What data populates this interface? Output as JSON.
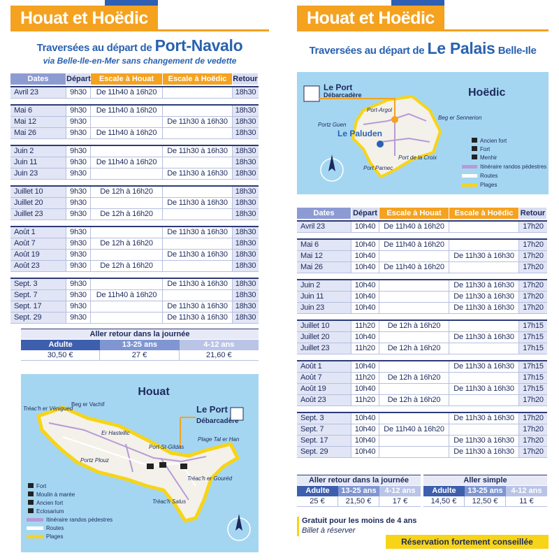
{
  "left": {
    "header": "Houat et Hoëdic",
    "subtitle_prefix": "Traversées au départ de",
    "subtitle_place": "Port-Navalo",
    "subtitle_note": "via Belle-Ile-en-Mer sans changement de vedette",
    "table": {
      "columns": [
        "Dates",
        "Départ",
        "Escale à Houat",
        "Escale à Hoëdic",
        "Retour"
      ],
      "groups": [
        [
          [
            "Avril 23",
            "9h30",
            "De 11h40 à 16h20",
            null,
            "18h30"
          ]
        ],
        [
          [
            "Mai 6",
            "9h30",
            "De 11h40 à 16h20",
            null,
            "18h30"
          ],
          [
            "Mai 12",
            "9h30",
            null,
            "De 11h30 à 16h30",
            "18h30"
          ],
          [
            "Mai 26",
            "9h30",
            "De 11h40 à 16h20",
            null,
            "18h30"
          ]
        ],
        [
          [
            "Juin 2",
            "9h30",
            null,
            "De 11h30 à 16h30",
            "18h30"
          ],
          [
            "Juin 11",
            "9h30",
            "De 11h40 à 16h20",
            null,
            "18h30"
          ],
          [
            "Juin 23",
            "9h30",
            null,
            "De 11h30 à 16h30",
            "18h30"
          ]
        ],
        [
          [
            "Juillet 10",
            "9h30",
            "De 12h à 16h20",
            null,
            "18h30"
          ],
          [
            "Juillet 20",
            "9h30",
            null,
            "De 11h30 à 16h30",
            "18h30"
          ],
          [
            "Juillet 23",
            "9h30",
            "De 12h à 16h20",
            null,
            "18h30"
          ]
        ],
        [
          [
            "Août 1",
            "9h30",
            null,
            "De 11h30 à 16h30",
            "18h30"
          ],
          [
            "Août 7",
            "9h30",
            "De 12h à 16h20",
            null,
            "18h30"
          ],
          [
            "Août 19",
            "9h30",
            null,
            "De 11h30 à 16h30",
            "18h30"
          ],
          [
            "Août 23",
            "9h30",
            "De 12h à 16h20",
            null,
            "18h30"
          ]
        ],
        [
          [
            "Sept. 3",
            "9h30",
            null,
            "De 11h30 à 16h30",
            "18h30"
          ],
          [
            "Sept. 7",
            "9h30",
            "De 11h40 à 16h20",
            null,
            "18h30"
          ],
          [
            "Sept. 17",
            "9h30",
            null,
            "De 11h30 à 16h30",
            "18h30"
          ],
          [
            "Sept. 29",
            "9h30",
            null,
            "De 11h30 à 16h30",
            "18h30"
          ]
        ]
      ]
    },
    "prices": [
      {
        "title": "Aller retour dans la journée",
        "columns": [
          "Adulte",
          "13-25 ans",
          "4-12 ans"
        ],
        "values": [
          "30,50 €",
          "27 €",
          "21,60 €"
        ]
      }
    ],
    "map": {
      "title": "Houat",
      "labels": [
        "Beg er Vachif",
        "Er Hastellic",
        "Tréac'h er Vénigued",
        "Le Port",
        "Débarcadère",
        "Port-St-Gildas",
        "Plage Tal er Han",
        "Portz Plouz",
        "Tréac'h er Gouréd",
        "Tréac'h Salus"
      ],
      "legend": [
        "Fort",
        "Moulin à marée",
        "Ancien fort",
        "Eclosarium",
        "Itinéraire randos pédestres",
        "Routes",
        "Plages"
      ]
    }
  },
  "right": {
    "header": "Houat et Hoëdic",
    "subtitle_prefix": "Traversées au départ de",
    "subtitle_place": "Le Palais",
    "subtitle_suffix": "Belle-Ile",
    "map": {
      "title": "Hoëdic",
      "labels": [
        "Le Port",
        "Débarcadère",
        "Port-Argol",
        "Portz Guen",
        "Le Paluden",
        "Beg er Sennerion",
        "Port de la Croix",
        "Port Parnec"
      ],
      "legend": [
        "Ancien fort",
        "Fort",
        "Menhir",
        "Itinéraire randos pédestres",
        "Routes",
        "Plages"
      ]
    },
    "table": {
      "columns": [
        "Dates",
        "Départ",
        "Escale à Houat",
        "Escale à Hoëdic",
        "Retour"
      ],
      "groups": [
        [
          [
            "Avril 23",
            "10h40",
            "De 11h40 à 16h20",
            null,
            "17h20"
          ]
        ],
        [
          [
            "Mai 6",
            "10h40",
            "De 11h40 à 16h20",
            null,
            "17h20"
          ],
          [
            "Mai 12",
            "10h40",
            null,
            "De 11h30 à 16h30",
            "17h20"
          ],
          [
            "Mai 26",
            "10h40",
            "De 11h40 à 16h20",
            null,
            "17h20"
          ]
        ],
        [
          [
            "Juin 2",
            "10h40",
            null,
            "De 11h30 à 16h30",
            "17h20"
          ],
          [
            "Juin 11",
            "10h40",
            null,
            "De 11h30 à 16h30",
            "17h20"
          ],
          [
            "Juin 23",
            "10h40",
            null,
            "De 11h30 à 16h30",
            "17h20"
          ]
        ],
        [
          [
            "Juillet 10",
            "11h20",
            "De 12h à 16h20",
            null,
            "17h15"
          ],
          [
            "Juillet 20",
            "10h40",
            null,
            "De 11h30 à 16h30",
            "17h15"
          ],
          [
            "Juillet 23",
            "11h20",
            "De 12h à 16h20",
            null,
            "17h15"
          ]
        ],
        [
          [
            "Août 1",
            "10h40",
            null,
            "De 11h30 à 16h30",
            "17h15"
          ],
          [
            "Août 7",
            "11h20",
            "De 12h à 16h20",
            null,
            "17h15"
          ],
          [
            "Août 19",
            "10h40",
            null,
            "De 11h30 à 16h30",
            "17h15"
          ],
          [
            "Août 23",
            "11h20",
            "De 12h à 16h20",
            null,
            "17h20"
          ]
        ],
        [
          [
            "Sept. 3",
            "10h40",
            null,
            "De 11h30 à 16h30",
            "17h20"
          ],
          [
            "Sept. 7",
            "10h40",
            "De 11h40 à 16h20",
            null,
            "17h20"
          ],
          [
            "Sept. 17",
            "10h40",
            null,
            "De 11h30 à 16h30",
            "17h20"
          ],
          [
            "Sept. 29",
            "10h40",
            null,
            "De 11h30 à 16h30",
            "17h20"
          ]
        ]
      ]
    },
    "prices": [
      {
        "title": "Aller retour dans la journée",
        "columns": [
          "Adulte",
          "13-25 ans",
          "4-12 ans"
        ],
        "values": [
          "25 €",
          "21,50 €",
          "17 €"
        ]
      },
      {
        "title": "Aller simple",
        "columns": [
          "Adulte",
          "13-25 ans",
          "4-12 ans"
        ],
        "values": [
          "14,50 €",
          "12,50 €",
          "11 €"
        ]
      }
    ],
    "notes": {
      "free": "Gratuit pour les moins de 4 ans",
      "ticket": "Billet à réserver",
      "booking": "Réservation fortement conseillée"
    }
  }
}
